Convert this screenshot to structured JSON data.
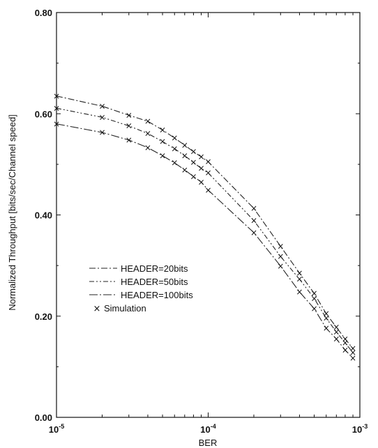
{
  "chart_data": {
    "type": "line",
    "title": "",
    "xlabel": "BER",
    "ylabel": "Normalized Throughput [bits/sec/Channel speed]",
    "xscale": "log",
    "xlim": [
      1e-05,
      0.001
    ],
    "ylim": [
      0.0,
      0.8
    ],
    "x_ticks": [
      {
        "value": 1e-05,
        "base": "10",
        "exp": "-5"
      },
      {
        "value": 0.0001,
        "base": "10",
        "exp": "-4"
      },
      {
        "value": 0.001,
        "base": "10",
        "exp": "-3"
      }
    ],
    "y_ticks": [
      {
        "value": 0.0,
        "label": "0.00"
      },
      {
        "value": 0.2,
        "label": "0.20"
      },
      {
        "value": 0.4,
        "label": "0.40"
      },
      {
        "value": 0.6,
        "label": "0.60"
      },
      {
        "value": 0.8,
        "label": "0.80"
      }
    ],
    "grid": false,
    "legend_position": "lower-left",
    "x": [
      1e-05,
      2e-05,
      3e-05,
      4e-05,
      5e-05,
      6e-05,
      7e-05,
      8e-05,
      9e-05,
      0.0001,
      0.0002,
      0.0003,
      0.0004,
      0.0005,
      0.0006,
      0.0007,
      0.0008,
      0.0009
    ],
    "series": [
      {
        "name": "HEADER=20bits",
        "dash": "dash-dot",
        "values": [
          0.635,
          0.615,
          0.597,
          0.585,
          0.568,
          0.552,
          0.538,
          0.525,
          0.515,
          0.505,
          0.413,
          0.338,
          0.285,
          0.245,
          0.205,
          0.178,
          0.155,
          0.136
        ]
      },
      {
        "name": "HEADER=50bits",
        "dash": "dash-dot-dot",
        "values": [
          0.611,
          0.593,
          0.576,
          0.561,
          0.545,
          0.531,
          0.517,
          0.504,
          0.492,
          0.483,
          0.389,
          0.318,
          0.273,
          0.235,
          0.196,
          0.169,
          0.147,
          0.128
        ]
      },
      {
        "name": "HEADER=100bits",
        "dash": "long-dash-dot",
        "values": [
          0.58,
          0.563,
          0.548,
          0.533,
          0.517,
          0.503,
          0.489,
          0.476,
          0.465,
          0.449,
          0.365,
          0.299,
          0.248,
          0.215,
          0.176,
          0.155,
          0.133,
          0.117
        ]
      }
    ],
    "simulation_marker": {
      "name": "Simulation",
      "symbol": "×"
    }
  }
}
